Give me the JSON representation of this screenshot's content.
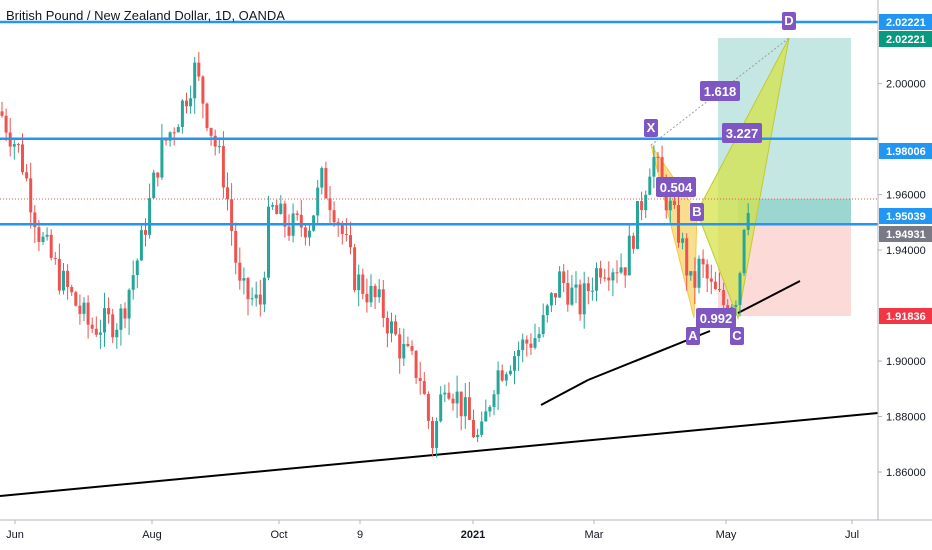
{
  "header": {
    "title": "British Pound / New Zealand Dollar, 1D, OANDA"
  },
  "chart_data": {
    "type": "candlestick",
    "symbol": "GBP/NZD",
    "timeframe": "1D",
    "exchange": "OANDA",
    "ylim": [
      1.845,
      2.035
    ],
    "price_axis": {
      "ticks": [
        "2.00000",
        "1.96000",
        "1.94000",
        "1.90000",
        "1.88000",
        "1.86000"
      ],
      "tick_values": [
        2.0,
        1.96,
        1.94,
        1.9,
        1.88,
        1.86
      ]
    },
    "time_axis": {
      "labels": [
        "Jun",
        "Aug",
        "Oct",
        "9",
        "2021",
        "Mar",
        "May",
        "Jul"
      ],
      "bold": [
        false,
        false,
        false,
        false,
        true,
        false,
        false,
        false
      ]
    },
    "price_tags": [
      {
        "label": "2.02221",
        "value": 2.0222,
        "color": "#2196f3"
      },
      {
        "label": "2.02221",
        "value": 2.0222,
        "color": "#089981"
      },
      {
        "label": "1.98006",
        "value": 1.9801,
        "color": "#2196f3"
      },
      {
        "label": "1.95039",
        "value": 1.9504,
        "color": "#2196f3"
      },
      {
        "label": "1.94931",
        "value": 1.9493,
        "color": "#787b86"
      },
      {
        "label": "1.91836",
        "value": 1.9184,
        "color": "#f23645"
      }
    ],
    "horizontal_lines": [
      2.0222,
      1.9801,
      1.9493
    ],
    "pattern": {
      "points": [
        "X",
        "A",
        "B",
        "C",
        "D"
      ],
      "ratios": [
        "1.618",
        "3.227",
        "0.504",
        "0.992"
      ]
    },
    "position": {
      "entry": 1.9493,
      "target": 2.0222,
      "stop": 1.9184
    },
    "colors": {
      "up": "#26a69a",
      "down": "#ef5350",
      "level": "#2196f3",
      "pattern": "#7e57c2",
      "pattern_fill": "#d6e34a",
      "pattern_fill_2": "#f5c842",
      "profit_zone": "#b2dfdb",
      "loss_zone": "#fcd6d4"
    }
  }
}
